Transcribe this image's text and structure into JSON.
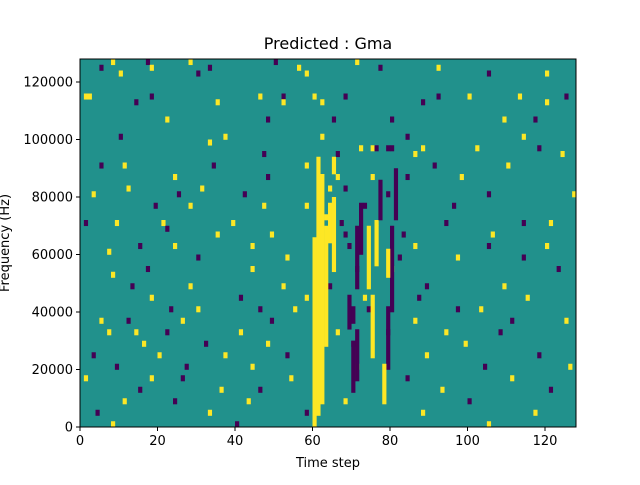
{
  "chart_data": {
    "type": "heatmap",
    "title": "Predicted : Gma",
    "xlabel": "Time step",
    "ylabel": "Frequency (Hz)",
    "xlim": [
      0,
      128
    ],
    "ylim": [
      0,
      128000
    ],
    "xticks": [
      "0",
      "20",
      "40",
      "60",
      "80",
      "100",
      "120"
    ],
    "xtick_values": [
      0,
      20,
      40,
      60,
      80,
      100,
      120
    ],
    "yticks": [
      "0",
      "20000",
      "40000",
      "60000",
      "80000",
      "100000",
      "120000"
    ],
    "ytick_values": [
      0,
      20000,
      40000,
      60000,
      80000,
      100000,
      120000
    ],
    "colormap": {
      "low": "#440154",
      "mid": "#21918c",
      "high": "#fde725"
    },
    "background_value": 0,
    "cell_value_levels": [
      -1,
      0,
      1
    ],
    "n_time_steps": 128,
    "n_frequency_bins": 64,
    "frequency_bin_hz": 2000,
    "grid": false,
    "nonzero_cells": [
      {
        "t": 8,
        "f": 63,
        "v": 1
      },
      {
        "t": 17,
        "f": 63,
        "v": -1
      },
      {
        "t": 28,
        "f": 63,
        "v": 1
      },
      {
        "t": 50,
        "f": 63,
        "v": -1
      },
      {
        "t": 71,
        "f": 63,
        "v": 1
      },
      {
        "t": 5,
        "f": 62,
        "v": -1
      },
      {
        "t": 18,
        "f": 62,
        "v": 1
      },
      {
        "t": 33,
        "f": 62,
        "v": -1
      },
      {
        "t": 56,
        "f": 62,
        "v": 1
      },
      {
        "t": 77,
        "f": 62,
        "v": -1
      },
      {
        "t": 92,
        "f": 62,
        "v": 1
      },
      {
        "t": 10,
        "f": 61,
        "v": 1
      },
      {
        "t": 30,
        "f": 61,
        "v": -1
      },
      {
        "t": 58,
        "f": 61,
        "v": 1
      },
      {
        "t": 105,
        "f": 61,
        "v": -1
      },
      {
        "t": 120,
        "f": 61,
        "v": 1
      },
      {
        "t": 1,
        "f": 57,
        "v": 1
      },
      {
        "t": 2,
        "f": 57,
        "v": 1
      },
      {
        "t": 18,
        "f": 57,
        "v": -1
      },
      {
        "t": 46,
        "f": 57,
        "v": 1
      },
      {
        "t": 52,
        "f": 57,
        "v": -1
      },
      {
        "t": 60,
        "f": 57,
        "v": 1
      },
      {
        "t": 68,
        "f": 57,
        "v": -1
      },
      {
        "t": 92,
        "f": 57,
        "v": -1
      },
      {
        "t": 100,
        "f": 57,
        "v": 1
      },
      {
        "t": 113,
        "f": 57,
        "v": 1
      },
      {
        "t": 125,
        "f": 57,
        "v": -1
      },
      {
        "t": 14,
        "f": 56,
        "v": -1
      },
      {
        "t": 35,
        "f": 56,
        "v": 1
      },
      {
        "t": 52,
        "f": 56,
        "v": 1
      },
      {
        "t": 62,
        "f": 56,
        "v": 1
      },
      {
        "t": 88,
        "f": 56,
        "v": -1
      },
      {
        "t": 120,
        "f": 56,
        "v": 1
      },
      {
        "t": 22,
        "f": 53,
        "v": 1
      },
      {
        "t": 48,
        "f": 53,
        "v": -1
      },
      {
        "t": 65,
        "f": 53,
        "v": -1
      },
      {
        "t": 80,
        "f": 53,
        "v": -1
      },
      {
        "t": 109,
        "f": 53,
        "v": 1
      },
      {
        "t": 117,
        "f": 53,
        "v": -1
      },
      {
        "t": 10,
        "f": 50,
        "v": -1
      },
      {
        "t": 37,
        "f": 50,
        "v": 1
      },
      {
        "t": 62,
        "f": 50,
        "v": 1
      },
      {
        "t": 84,
        "f": 50,
        "v": -1
      },
      {
        "t": 114,
        "f": 50,
        "v": 1
      },
      {
        "t": 72,
        "f": 48,
        "v": 1
      },
      {
        "t": 75,
        "f": 48,
        "v": 1
      },
      {
        "t": 76,
        "f": 48,
        "v": -1
      },
      {
        "t": 79,
        "f": 48,
        "v": -1
      },
      {
        "t": 80,
        "f": 48,
        "v": -1
      },
      {
        "t": 88,
        "f": 48,
        "v": 1
      },
      {
        "t": 102,
        "f": 48,
        "v": 1
      },
      {
        "t": 118,
        "f": 48,
        "v": -1
      },
      {
        "t": 33,
        "f": 49,
        "v": 1
      },
      {
        "t": 47,
        "f": 47,
        "v": -1
      },
      {
        "t": 66,
        "f": 47,
        "v": -1
      },
      {
        "t": 86,
        "f": 47,
        "v": 1
      },
      {
        "t": 124,
        "f": 47,
        "v": 1
      },
      {
        "t": 5,
        "f": 45,
        "v": -1
      },
      {
        "t": 11,
        "f": 45,
        "v": 1
      },
      {
        "t": 34,
        "f": 45,
        "v": -1
      },
      {
        "t": 58,
        "f": 45,
        "v": 1
      },
      {
        "t": 91,
        "f": 45,
        "v": -1
      },
      {
        "t": 110,
        "f": 45,
        "v": 1
      },
      {
        "t": 24,
        "f": 43,
        "v": 1
      },
      {
        "t": 48,
        "f": 43,
        "v": -1
      },
      {
        "t": 66,
        "f": 43,
        "v": 1
      },
      {
        "t": 75,
        "f": 43,
        "v": 1
      },
      {
        "t": 84,
        "f": 43,
        "v": -1
      },
      {
        "t": 98,
        "f": 43,
        "v": 1
      },
      {
        "t": 3,
        "f": 40,
        "v": 1
      },
      {
        "t": 12,
        "f": 41,
        "v": 1
      },
      {
        "t": 25,
        "f": 40,
        "v": -1
      },
      {
        "t": 31,
        "f": 41,
        "v": 1
      },
      {
        "t": 42,
        "f": 40,
        "v": -1
      },
      {
        "t": 64,
        "f": 41,
        "v": 1
      },
      {
        "t": 68,
        "f": 41,
        "v": -1
      },
      {
        "t": 79,
        "f": 40,
        "v": -1
      },
      {
        "t": 105,
        "f": 40,
        "v": -1
      },
      {
        "t": 127,
        "f": 40,
        "v": 1
      },
      {
        "t": 19,
        "f": 38,
        "v": -1
      },
      {
        "t": 28,
        "f": 38,
        "v": 1
      },
      {
        "t": 47,
        "f": 38,
        "v": 1
      },
      {
        "t": 58,
        "f": 38,
        "v": 1
      },
      {
        "t": 73,
        "f": 38,
        "v": -1
      },
      {
        "t": 96,
        "f": 38,
        "v": -1
      },
      {
        "t": 1,
        "f": 35,
        "v": -1
      },
      {
        "t": 9,
        "f": 35,
        "v": 1
      },
      {
        "t": 21,
        "f": 35,
        "v": 1
      },
      {
        "t": 39,
        "f": 35,
        "v": 1
      },
      {
        "t": 67,
        "f": 35,
        "v": -1
      },
      {
        "t": 76,
        "f": 35,
        "v": 1
      },
      {
        "t": 94,
        "f": 35,
        "v": -1
      },
      {
        "t": 114,
        "f": 35,
        "v": -1
      },
      {
        "t": 121,
        "f": 35,
        "v": 1
      },
      {
        "t": 22,
        "f": 34,
        "v": -1
      },
      {
        "t": 35,
        "f": 33,
        "v": 1
      },
      {
        "t": 49,
        "f": 33,
        "v": 1
      },
      {
        "t": 68,
        "f": 33,
        "v": -1
      },
      {
        "t": 83,
        "f": 33,
        "v": -1
      },
      {
        "t": 106,
        "f": 33,
        "v": 1
      },
      {
        "t": 15,
        "f": 31,
        "v": -1
      },
      {
        "t": 24,
        "f": 31,
        "v": 1
      },
      {
        "t": 44,
        "f": 31,
        "v": 1
      },
      {
        "t": 69,
        "f": 31,
        "v": -1
      },
      {
        "t": 86,
        "f": 31,
        "v": 1
      },
      {
        "t": 105,
        "f": 31,
        "v": -1
      },
      {
        "t": 120,
        "f": 31,
        "v": 1
      },
      {
        "t": 7,
        "f": 30,
        "v": 1
      },
      {
        "t": 30,
        "f": 29,
        "v": -1
      },
      {
        "t": 53,
        "f": 29,
        "v": 1
      },
      {
        "t": 82,
        "f": 29,
        "v": -1
      },
      {
        "t": 97,
        "f": 29,
        "v": 1
      },
      {
        "t": 114,
        "f": 29,
        "v": -1
      },
      {
        "t": 8,
        "f": 26,
        "v": 1
      },
      {
        "t": 17,
        "f": 27,
        "v": -1
      },
      {
        "t": 44,
        "f": 27,
        "v": 1
      },
      {
        "t": 71,
        "f": 27,
        "v": -1
      },
      {
        "t": 80,
        "f": 27,
        "v": 1
      },
      {
        "t": 123,
        "f": 27,
        "v": -1
      },
      {
        "t": 13,
        "f": 24,
        "v": -1
      },
      {
        "t": 28,
        "f": 24,
        "v": 1
      },
      {
        "t": 52,
        "f": 24,
        "v": 1
      },
      {
        "t": 64,
        "f": 24,
        "v": -1
      },
      {
        "t": 89,
        "f": 24,
        "v": -1
      },
      {
        "t": 109,
        "f": 24,
        "v": 1
      },
      {
        "t": 18,
        "f": 22,
        "v": 1
      },
      {
        "t": 41,
        "f": 22,
        "v": -1
      },
      {
        "t": 58,
        "f": 22,
        "v": 1
      },
      {
        "t": 73,
        "f": 22,
        "v": 1
      },
      {
        "t": 87,
        "f": 22,
        "v": -1
      },
      {
        "t": 115,
        "f": 22,
        "v": 1
      },
      {
        "t": 23,
        "f": 20,
        "v": -1
      },
      {
        "t": 30,
        "f": 20,
        "v": 1
      },
      {
        "t": 46,
        "f": 20,
        "v": -1
      },
      {
        "t": 55,
        "f": 20,
        "v": 1
      },
      {
        "t": 74,
        "f": 20,
        "v": -1
      },
      {
        "t": 97,
        "f": 20,
        "v": -1
      },
      {
        "t": 103,
        "f": 20,
        "v": 1
      },
      {
        "t": 5,
        "f": 18,
        "v": 1
      },
      {
        "t": 12,
        "f": 18,
        "v": -1
      },
      {
        "t": 26,
        "f": 18,
        "v": 1
      },
      {
        "t": 49,
        "f": 18,
        "v": -1
      },
      {
        "t": 86,
        "f": 18,
        "v": 1
      },
      {
        "t": 111,
        "f": 18,
        "v": -1
      },
      {
        "t": 125,
        "f": 18,
        "v": 1
      },
      {
        "t": 7,
        "f": 16,
        "v": 1
      },
      {
        "t": 14,
        "f": 16,
        "v": 1
      },
      {
        "t": 22,
        "f": 16,
        "v": -1
      },
      {
        "t": 41,
        "f": 16,
        "v": 1
      },
      {
        "t": 66,
        "f": 16,
        "v": 1
      },
      {
        "t": 79,
        "f": 16,
        "v": -1
      },
      {
        "t": 94,
        "f": 16,
        "v": 1
      },
      {
        "t": 108,
        "f": 16,
        "v": -1
      },
      {
        "t": 16,
        "f": 14,
        "v": 1
      },
      {
        "t": 32,
        "f": 14,
        "v": -1
      },
      {
        "t": 48,
        "f": 14,
        "v": 1
      },
      {
        "t": 70,
        "f": 14,
        "v": -1
      },
      {
        "t": 99,
        "f": 14,
        "v": 1
      },
      {
        "t": 3,
        "f": 12,
        "v": -1
      },
      {
        "t": 20,
        "f": 12,
        "v": 1
      },
      {
        "t": 37,
        "f": 12,
        "v": 1
      },
      {
        "t": 53,
        "f": 12,
        "v": -1
      },
      {
        "t": 89,
        "f": 12,
        "v": 1
      },
      {
        "t": 118,
        "f": 12,
        "v": -1
      },
      {
        "t": 9,
        "f": 10,
        "v": -1
      },
      {
        "t": 27,
        "f": 10,
        "v": -1
      },
      {
        "t": 44,
        "f": 10,
        "v": 1
      },
      {
        "t": 71,
        "f": 10,
        "v": 1
      },
      {
        "t": 104,
        "f": 10,
        "v": -1
      },
      {
        "t": 126,
        "f": 10,
        "v": 1
      },
      {
        "t": 1,
        "f": 8,
        "v": 1
      },
      {
        "t": 18,
        "f": 8,
        "v": 1
      },
      {
        "t": 26,
        "f": 8,
        "v": -1
      },
      {
        "t": 54,
        "f": 8,
        "v": 1
      },
      {
        "t": 84,
        "f": 8,
        "v": -1
      },
      {
        "t": 111,
        "f": 8,
        "v": 1
      },
      {
        "t": 15,
        "f": 6,
        "v": -1
      },
      {
        "t": 36,
        "f": 6,
        "v": 1
      },
      {
        "t": 46,
        "f": 6,
        "v": -1
      },
      {
        "t": 93,
        "f": 6,
        "v": 1
      },
      {
        "t": 121,
        "f": 6,
        "v": -1
      },
      {
        "t": 11,
        "f": 4,
        "v": 1
      },
      {
        "t": 24,
        "f": 4,
        "v": -1
      },
      {
        "t": 43,
        "f": 4,
        "v": 1
      },
      {
        "t": 68,
        "f": 4,
        "v": 1
      },
      {
        "t": 100,
        "f": 4,
        "v": -1
      },
      {
        "t": 4,
        "f": 2,
        "v": -1
      },
      {
        "t": 33,
        "f": 2,
        "v": 1
      },
      {
        "t": 58,
        "f": 2,
        "v": -1
      },
      {
        "t": 88,
        "f": 2,
        "v": 1
      },
      {
        "t": 117,
        "f": 2,
        "v": 1
      },
      {
        "t": 8,
        "f": 0,
        "v": 1
      },
      {
        "t": 40,
        "f": 0,
        "v": -1
      },
      {
        "t": 105,
        "f": 0,
        "v": 1
      }
    ],
    "vertical_runs": [
      {
        "t": 60,
        "f_start": 0,
        "f_end": 32,
        "v": 1
      },
      {
        "t": 61,
        "f_start": 2,
        "f_end": 46,
        "v": 1
      },
      {
        "t": 62,
        "f_start": 4,
        "f_end": 43,
        "v": 1
      },
      {
        "t": 63,
        "f_start": 14,
        "f_end": 34,
        "v": 1
      },
      {
        "t": 63,
        "f_start": 36,
        "f_end": 36,
        "v": 1
      },
      {
        "t": 64,
        "f_start": 32,
        "f_end": 38,
        "v": 1
      },
      {
        "t": 65,
        "f_start": 27,
        "f_end": 39,
        "v": 1
      },
      {
        "t": 65,
        "f_start": 44,
        "f_end": 46,
        "v": 1
      },
      {
        "t": 70,
        "f_start": 6,
        "f_end": 14,
        "v": -1
      },
      {
        "t": 71,
        "f_start": 8,
        "f_end": 16,
        "v": -1
      },
      {
        "t": 70,
        "f_start": 18,
        "f_end": 20,
        "v": -1
      },
      {
        "t": 71,
        "f_start": 24,
        "f_end": 34,
        "v": -1
      },
      {
        "t": 72,
        "f_start": 30,
        "f_end": 38,
        "v": -1
      },
      {
        "t": 69,
        "f_start": 17,
        "f_end": 22,
        "v": -1
      },
      {
        "t": 74,
        "f_start": 24,
        "f_end": 34,
        "v": 1
      },
      {
        "t": 75,
        "f_start": 12,
        "f_end": 22,
        "v": 1
      },
      {
        "t": 76,
        "f_start": 28,
        "f_end": 34,
        "v": 1
      },
      {
        "t": 79,
        "f_start": 10,
        "f_end": 20,
        "v": -1
      },
      {
        "t": 80,
        "f_start": 20,
        "f_end": 34,
        "v": -1
      },
      {
        "t": 78,
        "f_start": 4,
        "f_end": 10,
        "v": 1
      },
      {
        "t": 77,
        "f_start": 36,
        "f_end": 42,
        "v": -1
      },
      {
        "t": 79,
        "f_start": 26,
        "f_end": 30,
        "v": 1
      },
      {
        "t": 81,
        "f_start": 36,
        "f_end": 44,
        "v": -1
      }
    ]
  }
}
